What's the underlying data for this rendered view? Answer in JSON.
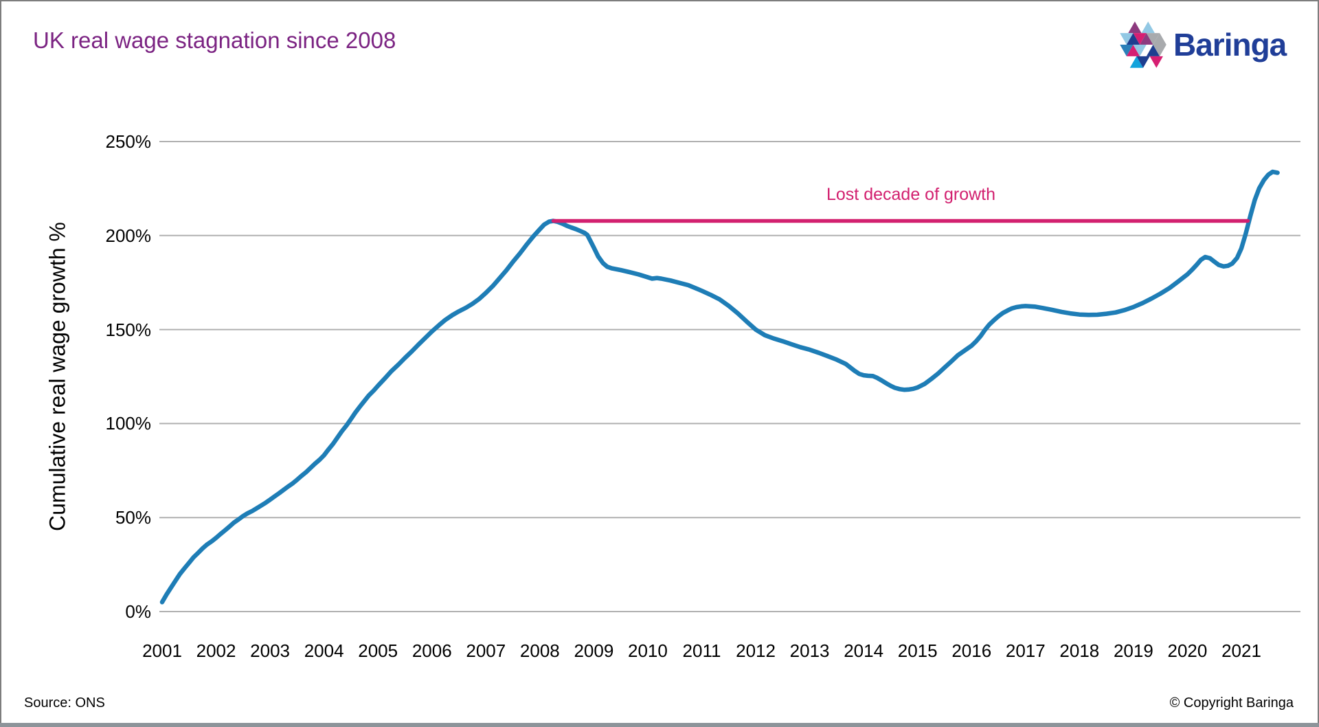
{
  "header": {
    "logo_text": "Baringa"
  },
  "footer": {
    "source": "Source: ONS",
    "copyright": "© Copyright Baringa"
  },
  "colors": {
    "title_purple": "#7b2382",
    "line_blue": "#1e7db6",
    "accent_pink": "#d2206f",
    "grid_gray": "#b0b0b0",
    "logo_blue": "#203e98",
    "text_black": "#000000"
  },
  "logo_palette": [
    "#8d3a7f",
    "#92c8e4",
    "#1d3e90",
    "#d61f72",
    "#a8aaad",
    "#2b80b9",
    "#12a3dc"
  ],
  "chart_data": {
    "type": "line",
    "title": "UK real wage stagnation since 2008",
    "xlabel": "",
    "ylabel": "Cumulative real wage growth %",
    "grid": "horizontal",
    "ylim": [
      0,
      250
    ],
    "xlim": [
      2001,
      2021.7
    ],
    "legend": "none",
    "y_ticks": [
      {
        "label": "0%",
        "value": 0
      },
      {
        "label": "50%",
        "value": 50
      },
      {
        "label": "100%",
        "value": 100
      },
      {
        "label": "150%",
        "value": 150
      },
      {
        "label": "200%",
        "value": 200
      },
      {
        "label": "250%",
        "value": 250
      }
    ],
    "x_ticks": [
      {
        "label": "2001",
        "value": 2001
      },
      {
        "label": "2002",
        "value": 2002
      },
      {
        "label": "2003",
        "value": 2003
      },
      {
        "label": "2004",
        "value": 2004
      },
      {
        "label": "2005",
        "value": 2005
      },
      {
        "label": "2006",
        "value": 2006
      },
      {
        "label": "2007",
        "value": 2007
      },
      {
        "label": "2008",
        "value": 2008
      },
      {
        "label": "2009",
        "value": 2009
      },
      {
        "label": "2010",
        "value": 2010
      },
      {
        "label": "2011",
        "value": 2011
      },
      {
        "label": "2012",
        "value": 2012
      },
      {
        "label": "2013",
        "value": 2013
      },
      {
        "label": "2014",
        "value": 2014
      },
      {
        "label": "2015",
        "value": 2015
      },
      {
        "label": "2016",
        "value": 2016
      },
      {
        "label": "2017",
        "value": 2017
      },
      {
        "label": "2018",
        "value": 2018
      },
      {
        "label": "2019",
        "value": 2019
      },
      {
        "label": "2020",
        "value": 2020
      },
      {
        "label": "2021",
        "value": 2021
      }
    ],
    "annotation": {
      "label": "Lost decade of growth",
      "color": "#d2206f",
      "line": {
        "value": 207.8,
        "from": 2008.25,
        "to": 2021.12
      }
    },
    "series": [
      {
        "name": "Cumulative real wage growth",
        "color": "#1e7db6",
        "points": [
          [
            2001.0,
            5
          ],
          [
            2001.08,
            9
          ],
          [
            2001.17,
            13
          ],
          [
            2001.25,
            16.5
          ],
          [
            2001.33,
            20
          ],
          [
            2001.42,
            23.2
          ],
          [
            2001.5,
            26
          ],
          [
            2001.58,
            28.8
          ],
          [
            2001.67,
            31.3
          ],
          [
            2001.75,
            33.6
          ],
          [
            2001.83,
            35.6
          ],
          [
            2001.92,
            37.4
          ],
          [
            2002.0,
            39.2
          ],
          [
            2002.08,
            41.2
          ],
          [
            2002.17,
            43.3
          ],
          [
            2002.25,
            45.3
          ],
          [
            2002.33,
            47.3
          ],
          [
            2002.42,
            49.1
          ],
          [
            2002.5,
            50.8
          ],
          [
            2002.58,
            52.2
          ],
          [
            2002.67,
            53.5
          ],
          [
            2002.75,
            54.9
          ],
          [
            2002.83,
            56.3
          ],
          [
            2002.92,
            57.9
          ],
          [
            2003.0,
            59.5
          ],
          [
            2003.08,
            61.2
          ],
          [
            2003.17,
            63
          ],
          [
            2003.25,
            64.7
          ],
          [
            2003.33,
            66.4
          ],
          [
            2003.42,
            68.2
          ],
          [
            2003.5,
            70.1
          ],
          [
            2003.58,
            72.1
          ],
          [
            2003.67,
            74.2
          ],
          [
            2003.75,
            76.4
          ],
          [
            2003.83,
            78.6
          ],
          [
            2003.92,
            80.8
          ],
          [
            2004.0,
            83.1
          ],
          [
            2004.08,
            86.1
          ],
          [
            2004.17,
            89.3
          ],
          [
            2004.25,
            92.6
          ],
          [
            2004.33,
            95.9
          ],
          [
            2004.42,
            99.1
          ],
          [
            2004.5,
            102.4
          ],
          [
            2004.58,
            105.8
          ],
          [
            2004.67,
            109.2
          ],
          [
            2004.75,
            112.1
          ],
          [
            2004.83,
            114.9
          ],
          [
            2004.92,
            117.5
          ],
          [
            2005.0,
            120.1
          ],
          [
            2005.13,
            124.1
          ],
          [
            2005.25,
            127.9
          ],
          [
            2005.38,
            131.4
          ],
          [
            2005.5,
            134.9
          ],
          [
            2005.63,
            138.5
          ],
          [
            2005.75,
            142
          ],
          [
            2005.88,
            145.6
          ],
          [
            2006.0,
            149
          ],
          [
            2006.13,
            152.3
          ],
          [
            2006.25,
            155.2
          ],
          [
            2006.38,
            157.7
          ],
          [
            2006.5,
            159.7
          ],
          [
            2006.63,
            161.6
          ],
          [
            2006.75,
            163.7
          ],
          [
            2006.88,
            166.4
          ],
          [
            2007.0,
            169.5
          ],
          [
            2007.13,
            173.2
          ],
          [
            2007.25,
            177.2
          ],
          [
            2007.38,
            181.5
          ],
          [
            2007.5,
            186
          ],
          [
            2007.63,
            190.5
          ],
          [
            2007.75,
            195
          ],
          [
            2007.88,
            199.6
          ],
          [
            2008.0,
            203.4
          ],
          [
            2008.08,
            205.8
          ],
          [
            2008.17,
            207.4
          ],
          [
            2008.25,
            207.8
          ],
          [
            2008.33,
            207.3
          ],
          [
            2008.42,
            206.3
          ],
          [
            2008.5,
            205.2
          ],
          [
            2008.58,
            204.3
          ],
          [
            2008.67,
            203.4
          ],
          [
            2008.75,
            202.4
          ],
          [
            2008.83,
            201.4
          ],
          [
            2008.88,
            200.3
          ],
          [
            2008.92,
            198.1
          ],
          [
            2009.0,
            193.6
          ],
          [
            2009.08,
            188.9
          ],
          [
            2009.17,
            185.3
          ],
          [
            2009.25,
            183.4
          ],
          [
            2009.33,
            182.6
          ],
          [
            2009.5,
            181.6
          ],
          [
            2009.67,
            180.5
          ],
          [
            2009.83,
            179.3
          ],
          [
            2010.0,
            177.8
          ],
          [
            2010.08,
            177.1
          ],
          [
            2010.17,
            177.4
          ],
          [
            2010.25,
            177.1
          ],
          [
            2010.42,
            176.1
          ],
          [
            2010.58,
            174.9
          ],
          [
            2010.75,
            173.6
          ],
          [
            2010.92,
            171.6
          ],
          [
            2011.0,
            170.6
          ],
          [
            2011.17,
            168.4
          ],
          [
            2011.33,
            166.1
          ],
          [
            2011.5,
            162.6
          ],
          [
            2011.67,
            158.6
          ],
          [
            2011.83,
            154.3
          ],
          [
            2012.0,
            150
          ],
          [
            2012.17,
            147
          ],
          [
            2012.33,
            145.3
          ],
          [
            2012.5,
            143.8
          ],
          [
            2012.67,
            142.1
          ],
          [
            2012.83,
            140.6
          ],
          [
            2013.0,
            139.3
          ],
          [
            2013.17,
            137.6
          ],
          [
            2013.33,
            135.9
          ],
          [
            2013.5,
            134
          ],
          [
            2013.67,
            131.7
          ],
          [
            2013.83,
            128.1
          ],
          [
            2013.92,
            126.4
          ],
          [
            2014.0,
            125.7
          ],
          [
            2014.08,
            125.4
          ],
          [
            2014.17,
            125.3
          ],
          [
            2014.25,
            124.3
          ],
          [
            2014.33,
            123
          ],
          [
            2014.42,
            121.4
          ],
          [
            2014.5,
            120.1
          ],
          [
            2014.58,
            119
          ],
          [
            2014.67,
            118.3
          ],
          [
            2014.75,
            118
          ],
          [
            2014.83,
            118.1
          ],
          [
            2014.92,
            118.5
          ],
          [
            2015.0,
            119.2
          ],
          [
            2015.13,
            121.1
          ],
          [
            2015.25,
            123.6
          ],
          [
            2015.38,
            126.6
          ],
          [
            2015.5,
            129.8
          ],
          [
            2015.63,
            133.2
          ],
          [
            2015.75,
            136.4
          ],
          [
            2015.88,
            139
          ],
          [
            2016.0,
            141.4
          ],
          [
            2016.08,
            143.6
          ],
          [
            2016.17,
            146.6
          ],
          [
            2016.25,
            149.9
          ],
          [
            2016.33,
            152.7
          ],
          [
            2016.42,
            155.1
          ],
          [
            2016.5,
            157.1
          ],
          [
            2016.58,
            158.8
          ],
          [
            2016.67,
            160.2
          ],
          [
            2016.75,
            161.3
          ],
          [
            2016.83,
            161.9
          ],
          [
            2016.92,
            162.3
          ],
          [
            2017.0,
            162.5
          ],
          [
            2017.17,
            162.2
          ],
          [
            2017.33,
            161.4
          ],
          [
            2017.5,
            160.4
          ],
          [
            2017.67,
            159.4
          ],
          [
            2017.83,
            158.6
          ],
          [
            2018.0,
            158
          ],
          [
            2018.17,
            157.8
          ],
          [
            2018.33,
            157.9
          ],
          [
            2018.5,
            158.4
          ],
          [
            2018.67,
            159.1
          ],
          [
            2018.83,
            160.3
          ],
          [
            2019.0,
            162
          ],
          [
            2019.17,
            164.1
          ],
          [
            2019.33,
            166.4
          ],
          [
            2019.5,
            169.1
          ],
          [
            2019.67,
            172.1
          ],
          [
            2019.83,
            175.6
          ],
          [
            2020.0,
            179.4
          ],
          [
            2020.08,
            181.6
          ],
          [
            2020.17,
            184.4
          ],
          [
            2020.25,
            187.1
          ],
          [
            2020.33,
            188.6
          ],
          [
            2020.42,
            187.9
          ],
          [
            2020.5,
            186.1
          ],
          [
            2020.58,
            184.4
          ],
          [
            2020.67,
            183.6
          ],
          [
            2020.75,
            183.9
          ],
          [
            2020.83,
            185.1
          ],
          [
            2020.92,
            188.1
          ],
          [
            2021.0,
            193.2
          ],
          [
            2021.08,
            200.9
          ],
          [
            2021.17,
            210.9
          ],
          [
            2021.25,
            219
          ],
          [
            2021.33,
            225.1
          ],
          [
            2021.42,
            229.6
          ],
          [
            2021.5,
            232.4
          ],
          [
            2021.58,
            233.9
          ],
          [
            2021.67,
            233.4
          ]
        ]
      }
    ]
  }
}
